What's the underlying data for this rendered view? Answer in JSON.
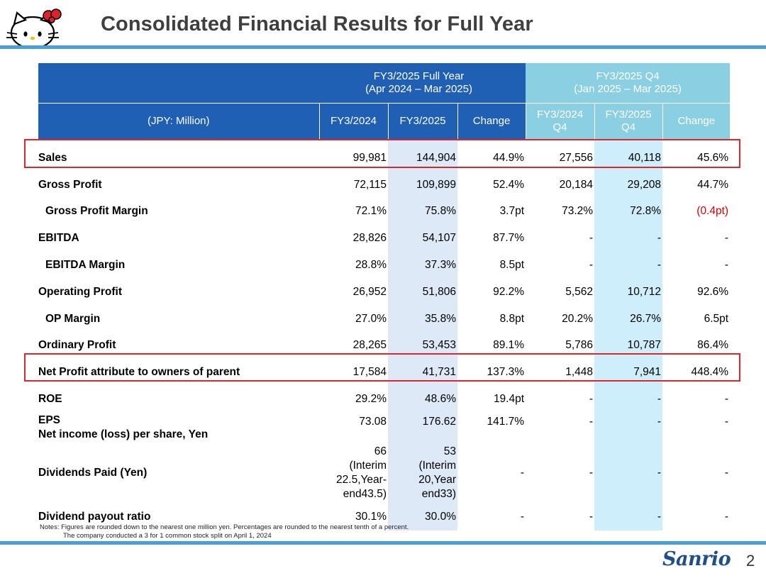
{
  "page": {
    "title": "Consolidated Financial Results for Full Year",
    "page_number": "2",
    "brand": "Sanrio"
  },
  "table": {
    "group_full_year_line1": "FY3/2025 Full Year",
    "group_full_year_line2": "(Apr 2024 – Mar 2025)",
    "group_q4_line1": "FY3/2025 Q4",
    "group_q4_line2": "(Jan 2025 – Mar 2025)",
    "unit_label": "(JPY: Million)",
    "columns": {
      "fy2024": "FY3/2024",
      "fy2025": "FY3/2025",
      "change": "Change",
      "q4_2024_line1": "FY3/2024",
      "q4_2024_line2": "Q4",
      "q4_2025_line1": "FY3/2025",
      "q4_2025_line2": "Q4",
      "q4_change": "Change"
    },
    "rows": [
      {
        "label": "Sales",
        "fy2024": "99,981",
        "fy2025": "144,904",
        "change": "44.9%",
        "q4_2024": "27,556",
        "q4_2025": "40,118",
        "q4_change": "45.6%"
      },
      {
        "label": "Gross Profit",
        "fy2024": "72,115",
        "fy2025": "109,899",
        "change": "52.4%",
        "q4_2024": "20,184",
        "q4_2025": "29,208",
        "q4_change": "44.7%"
      },
      {
        "label": "Gross Profit Margin",
        "fy2024": "72.1%",
        "fy2025": "75.8%",
        "change": "3.7pt",
        "q4_2024": "73.2%",
        "q4_2025": "72.8%",
        "q4_change": "(0.4pt)"
      },
      {
        "label": "EBITDA",
        "fy2024": "28,826",
        "fy2025": "54,107",
        "change": "87.7%",
        "q4_2024": "-",
        "q4_2025": "-",
        "q4_change": "-"
      },
      {
        "label": "EBITDA Margin",
        "fy2024": "28.8%",
        "fy2025": "37.3%",
        "change": "8.5pt",
        "q4_2024": "-",
        "q4_2025": "-",
        "q4_change": "-"
      },
      {
        "label": "Operating Profit",
        "fy2024": "26,952",
        "fy2025": "51,806",
        "change": "92.2%",
        "q4_2024": "5,562",
        "q4_2025": "10,712",
        "q4_change": "92.6%"
      },
      {
        "label": "OP Margin",
        "fy2024": "27.0%",
        "fy2025": "35.8%",
        "change": "8.8pt",
        "q4_2024": "20.2%",
        "q4_2025": "26.7%",
        "q4_change": "6.5pt"
      },
      {
        "label": "Ordinary Profit",
        "fy2024": "28,265",
        "fy2025": "53,453",
        "change": "89.1%",
        "q4_2024": "5,786",
        "q4_2025": "10,787",
        "q4_change": "86.4%"
      },
      {
        "label": "Net Profit attribute to owners of parent",
        "fy2024": "17,584",
        "fy2025": "41,731",
        "change": "137.3%",
        "q4_2024": "1,448",
        "q4_2025": "7,941",
        "q4_change": "448.4%"
      },
      {
        "label": "ROE",
        "fy2024": "29.2%",
        "fy2025": "48.6%",
        "change": "19.4pt",
        "q4_2024": "-",
        "q4_2025": "-",
        "q4_change": "-"
      }
    ],
    "eps": {
      "label_line1": "EPS",
      "label_line2": "Net income (loss) per share, Yen",
      "fy2024": "73.08",
      "fy2025": "176.62",
      "change": "141.7%",
      "q4_2024": "-",
      "q4_2025": "-",
      "q4_change": "-"
    },
    "dividends": {
      "label": "Dividends Paid (Yen)",
      "fy2024": [
        "66",
        "(Interim",
        "22.5,Year-",
        "end43.5)"
      ],
      "fy2025": [
        "53",
        "(Interim",
        "20,Year",
        "end33)"
      ],
      "change": "-",
      "q4_2024": "-",
      "q4_2025": "-",
      "q4_change": "-"
    },
    "payout": {
      "label": "Dividend payout ratio",
      "fy2024": "30.1%",
      "fy2025": "30.0%",
      "change": "-",
      "q4_2024": "-",
      "q4_2025": "-",
      "q4_change": "-"
    }
  },
  "notes": {
    "line1": "Notes: Figures are rounded down to the nearest one million yen. Percentages are rounded to the nearest tenth of a percent.",
    "line2": "The company conducted a 3 for 1 common stock split on April 1, 2024"
  },
  "colors": {
    "header_blue": "#2060b4",
    "header_cyan": "#8bcfe3",
    "rule_blue": "#4a9fd8",
    "highlight_red": "#d9272e",
    "negative": "#e00000"
  }
}
